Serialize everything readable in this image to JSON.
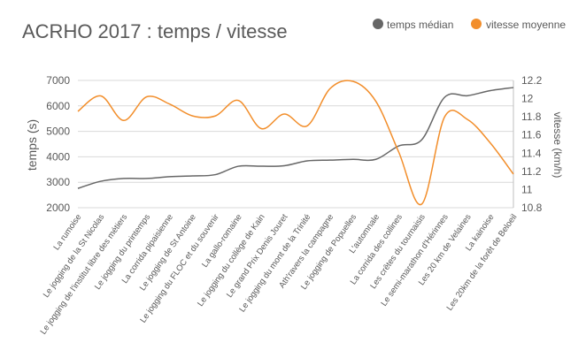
{
  "chart_data": {
    "type": "line",
    "title": "ACRHO 2017 : temps / vitesse",
    "ylabel": "temps (s)",
    "y2label": "vitesse (km/h)",
    "ylim": [
      2000,
      7000
    ],
    "yticks": [
      2000,
      3000,
      4000,
      5000,
      6000,
      7000
    ],
    "y2lim": [
      10.8,
      12.2
    ],
    "y2ticks": [
      "10.8",
      "11",
      "11.2",
      "11.4",
      "11.6",
      "11.8",
      "12",
      "12.2"
    ],
    "grid": true,
    "smooth": true,
    "legend_position": "top-right",
    "categories": [
      "La rumoise",
      "Le jogging de la St Nicolas",
      "Le jogging de l'institut libre des métiers",
      "Le jogging du printemps",
      "La corrida pipaisienne",
      "Le jogging de St Antoine",
      "Le jogging du FLOC et du souvenir",
      "La gallo-romaine",
      "Le jogging du collège de Kain",
      "Le grand Prix Denis Jouret",
      "Le jogging du mont de la Trinité",
      "Ath'ravers la campagne",
      "Le jogging de Popuelles",
      "L'automnale",
      "La corrida des collines",
      "Les crêtes du tournaisis",
      "Le semi-marathon d'Hérinnes",
      "Les 20 km de Velaines",
      "La kainoise",
      "Les 20km de la forêt de Beloeil"
    ],
    "series": [
      {
        "name": "temps médian",
        "axis": "left",
        "color": "#666666",
        "values": [
          2760,
          3040,
          3150,
          3150,
          3220,
          3250,
          3300,
          3630,
          3630,
          3650,
          3840,
          3870,
          3900,
          3900,
          4430,
          4670,
          6340,
          6400,
          6600,
          6720
        ]
      },
      {
        "name": "vitesse moyenne",
        "axis": "right",
        "color": "#f28e2b",
        "values": [
          11.86,
          12.03,
          11.76,
          12.02,
          11.94,
          11.81,
          11.81,
          11.98,
          11.67,
          11.83,
          11.7,
          12.11,
          12.19,
          11.97,
          11.41,
          10.84,
          11.8,
          11.77,
          11.51,
          11.17
        ]
      }
    ]
  }
}
